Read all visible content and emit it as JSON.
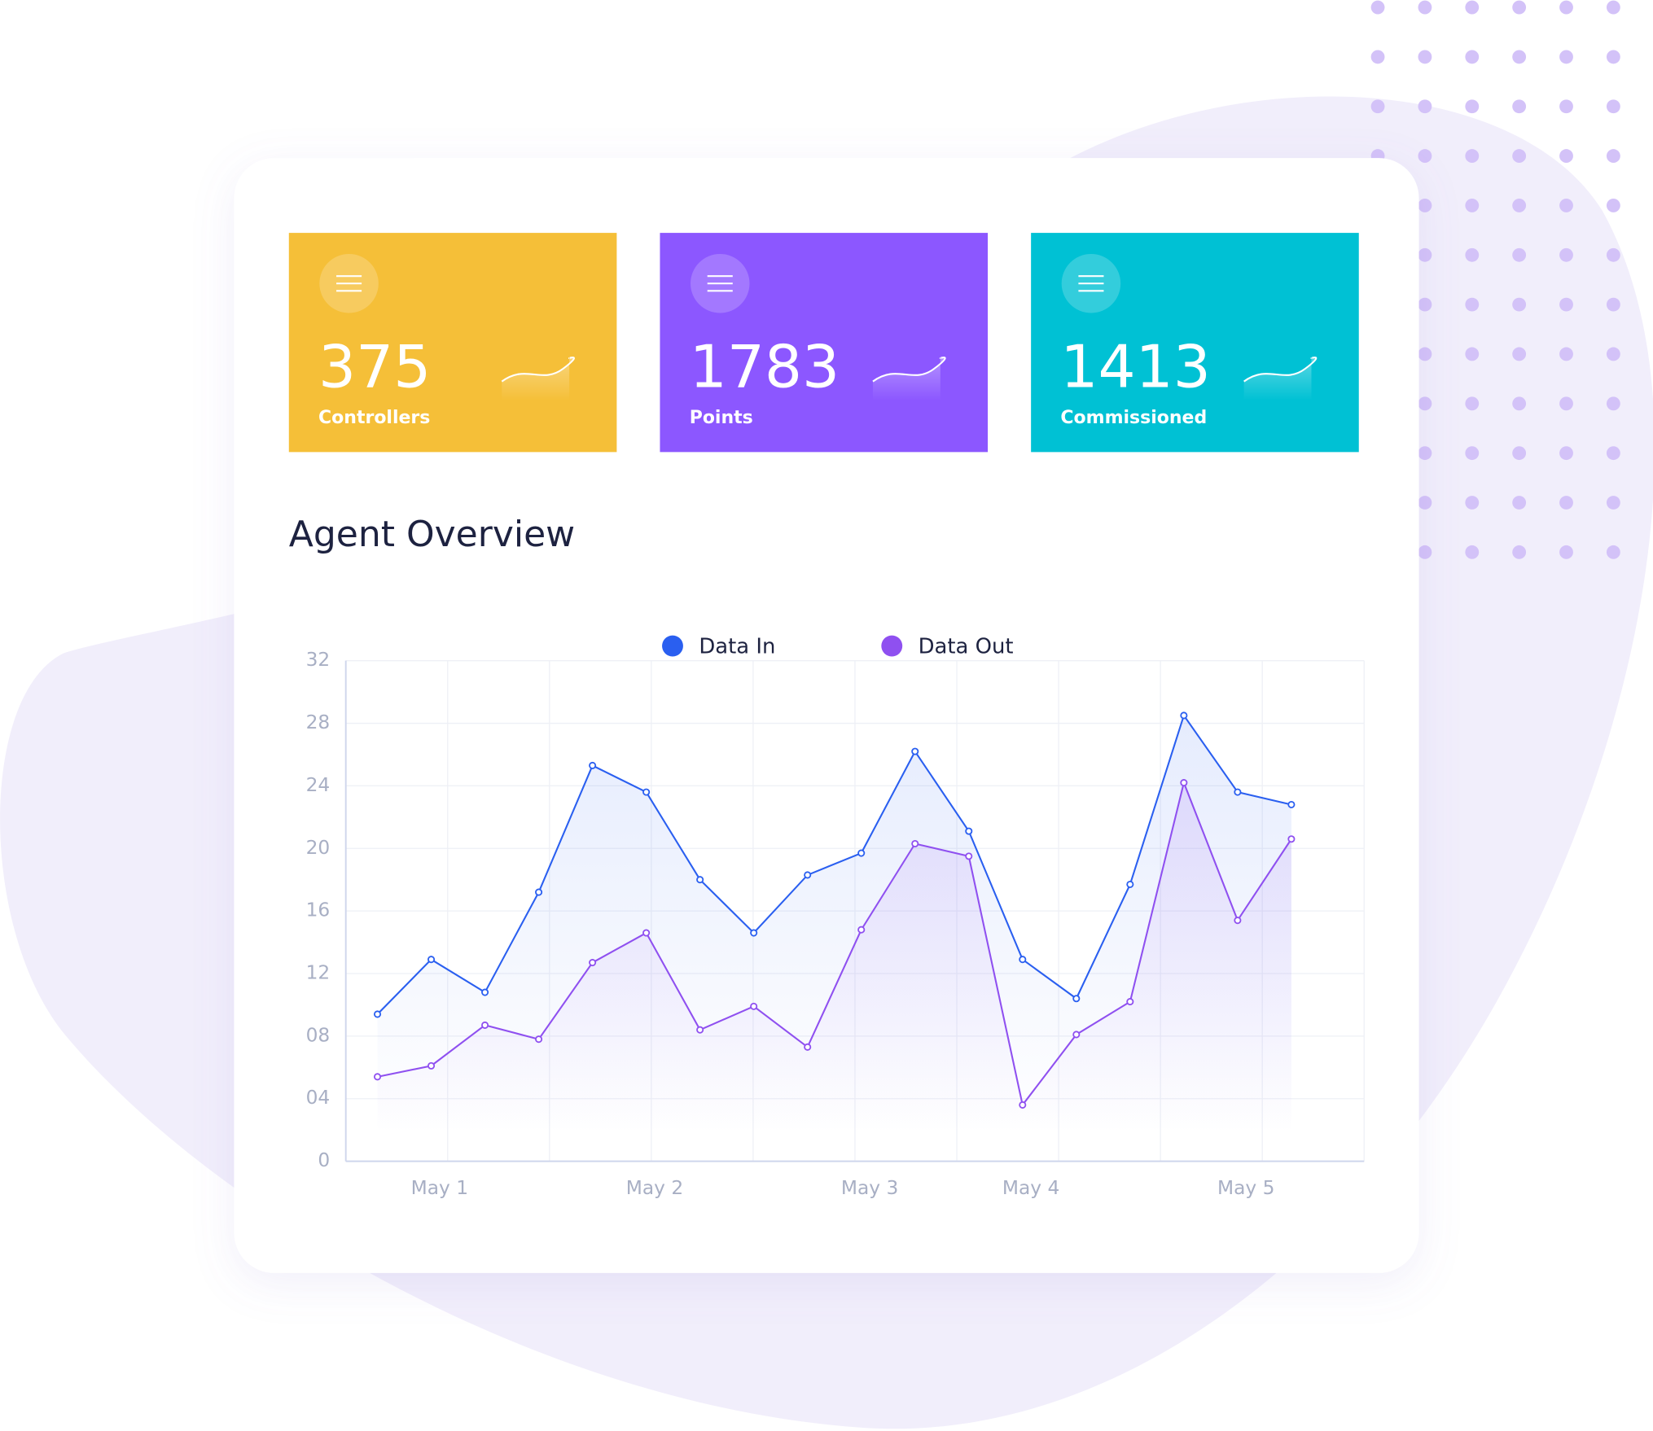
{
  "cards": [
    {
      "value": 375,
      "label": "Controllers",
      "color": "#f5bf38"
    },
    {
      "value": 1783,
      "label": "Points",
      "color": "#8c57ff"
    },
    {
      "value": 1413,
      "label": "Commissioned",
      "color": "#00c1d4"
    }
  ],
  "chart_data": {
    "type": "line",
    "title": "Agent Overview",
    "categories": [
      null,
      "May 1",
      null,
      null,
      null,
      "May 2",
      null,
      null,
      null,
      "May 3",
      null,
      null,
      "May 4",
      null,
      null,
      null,
      "May 5",
      null
    ],
    "series": [
      {
        "name": "Data In",
        "color": "#2a5ff0",
        "values": [
          9.4,
          12.9,
          10.8,
          17.2,
          25.3,
          23.6,
          18.0,
          14.6,
          18.3,
          19.7,
          26.2,
          21.1,
          12.9,
          10.4,
          17.7,
          28.5,
          23.6,
          22.8
        ]
      },
      {
        "name": "Data Out",
        "color": "#8f50f0",
        "values": [
          5.4,
          6.1,
          8.7,
          7.8,
          12.7,
          14.6,
          8.4,
          9.9,
          7.3,
          14.8,
          20.3,
          19.5,
          3.6,
          8.1,
          10.2,
          24.2,
          15.4,
          20.6
        ]
      }
    ],
    "ylim": [
      0,
      32
    ],
    "yticks": [
      0,
      {
        "value": 4,
        "label": "04"
      },
      {
        "value": 8,
        "label": "08"
      },
      12,
      16,
      20,
      24,
      28,
      32
    ],
    "grid": true
  }
}
